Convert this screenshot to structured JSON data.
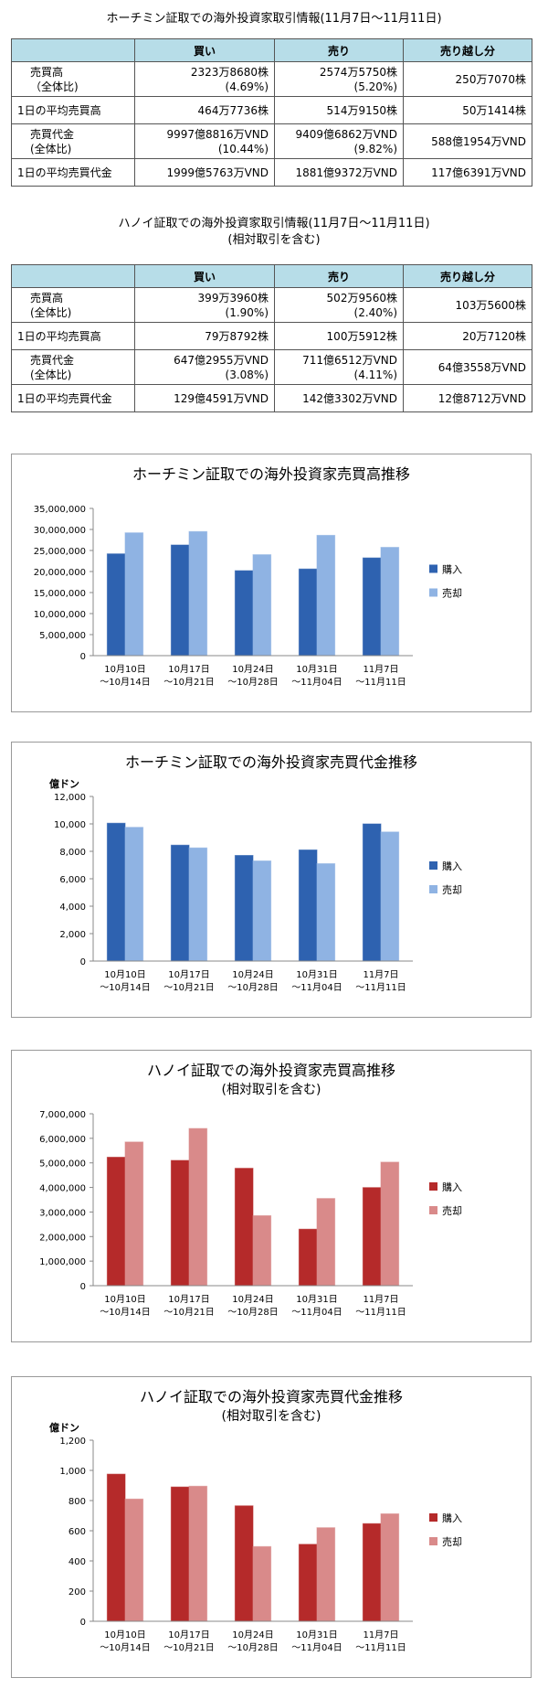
{
  "tables": [
    {
      "title": [
        "ホーチミン証取での海外投資家取引情報(11月7日～11月11日)"
      ],
      "headers": [
        "買い",
        "売り",
        "売り越し分"
      ],
      "rows": [
        {
          "label": [
            "売買高",
            "（全体比)"
          ],
          "cells": [
            [
              "2323万8680株",
              "(4.69%)"
            ],
            [
              "2574万5750株",
              "(5.20%)"
            ],
            [
              "250万7070株"
            ]
          ]
        },
        {
          "label": [
            "1日の平均売買高"
          ],
          "cells": [
            [
              "464万7736株"
            ],
            [
              "514万9150株"
            ],
            [
              "50万1414株"
            ]
          ]
        },
        {
          "label": [
            "売買代金",
            "(全体比)"
          ],
          "cells": [
            [
              "9997億8816万VND",
              "(10.44%)"
            ],
            [
              "9409億6862万VND",
              "(9.82%)"
            ],
            [
              "588億1954万VND"
            ]
          ]
        },
        {
          "label": [
            "1日の平均売買代金"
          ],
          "cells": [
            [
              "1999億5763万VND"
            ],
            [
              "1881億9372万VND"
            ],
            [
              "117億6391万VND"
            ]
          ]
        }
      ]
    },
    {
      "title": [
        "ハノイ証取での海外投資家取引情報(11月7日～11月11日)",
        "(相対取引を含む)"
      ],
      "headers": [
        "買い",
        "売り",
        "売り越し分"
      ],
      "rows": [
        {
          "label": [
            "売買高",
            "(全体比)"
          ],
          "cells": [
            [
              "399万3960株",
              "(1.90%)"
            ],
            [
              "502万9560株",
              "(2.40%)"
            ],
            [
              "103万5600株"
            ]
          ]
        },
        {
          "label": [
            "1日の平均売買高"
          ],
          "cells": [
            [
              "79万8792株"
            ],
            [
              "100万5912株"
            ],
            [
              "20万7120株"
            ]
          ]
        },
        {
          "label": [
            "売買代金",
            "(全体比)"
          ],
          "cells": [
            [
              "647億2955万VND",
              "(3.08%)"
            ],
            [
              "711億6512万VND",
              "(4.11%)"
            ],
            [
              "64億3558万VND"
            ]
          ]
        },
        {
          "label": [
            "1日の平均売買代金"
          ],
          "cells": [
            [
              "129億4591万VND"
            ],
            [
              "142億3302万VND"
            ],
            [
              "12億8712万VND"
            ]
          ]
        }
      ]
    }
  ],
  "chart_data": [
    {
      "type": "bar",
      "title": "ホーチミン証取での海外投資家売買高推移",
      "categories": [
        [
          "10月10日",
          "～10月14日"
        ],
        [
          "10月17日",
          "～10月21日"
        ],
        [
          "10月24日",
          "～10月28日"
        ],
        [
          "10月31日",
          "～11月04日"
        ],
        [
          "11月7日",
          "～11月11日"
        ]
      ],
      "series": [
        {
          "name": "購入",
          "color": "#2e62b0",
          "values": [
            24200000,
            26300000,
            20200000,
            20600000,
            23238680
          ]
        },
        {
          "name": "売却",
          "color": "#8fb3e3",
          "values": [
            29200000,
            29500000,
            24000000,
            28600000,
            25745750
          ]
        }
      ],
      "ylim": [
        0,
        35000000
      ],
      "yticks": [
        0,
        {
          "value": 5000000,
          "label": "5,000,000"
        },
        {
          "value": 10000000,
          "label": "10,000,000"
        },
        {
          "value": 15000000,
          "label": "15,000,000"
        },
        {
          "value": 20000000,
          "label": "20,000,000"
        },
        {
          "value": 25000000,
          "label": "25,000,000"
        },
        {
          "value": 30000000,
          "label": "30,000,000"
        },
        {
          "value": 35000000,
          "label": "35,000,000"
        }
      ],
      "legend": "right"
    },
    {
      "type": "bar",
      "title": "ホーチミン証取での海外投資家売買代金推移",
      "y_label": "億ドン",
      "categories": [
        [
          "10月10日",
          "～10月14日"
        ],
        [
          "10月17日",
          "～10月21日"
        ],
        [
          "10月24日",
          "～10月28日"
        ],
        [
          "10月31日",
          "～11月04日"
        ],
        [
          "11月7日",
          "～11月11日"
        ]
      ],
      "series": [
        {
          "name": "購入",
          "color": "#2e62b0",
          "values": [
            10050,
            8450,
            7700,
            8100,
            9998
          ]
        },
        {
          "name": "売却",
          "color": "#8fb3e3",
          "values": [
            9750,
            8250,
            7300,
            7100,
            9410
          ]
        }
      ],
      "ylim": [
        0,
        12000
      ],
      "yticks": [
        0,
        {
          "value": 2000,
          "label": "2,000"
        },
        {
          "value": 4000,
          "label": "4,000"
        },
        {
          "value": 6000,
          "label": "6,000"
        },
        {
          "value": 8000,
          "label": "8,000"
        },
        {
          "value": 10000,
          "label": "10,000"
        },
        {
          "value": 12000,
          "label": "12,000"
        }
      ],
      "legend": "right"
    },
    {
      "type": "bar",
      "title": "ハノイ証取での海外投資家売買高推移",
      "subtitle": "(相対取引を含む)",
      "categories": [
        [
          "10月10日",
          "～10月14日"
        ],
        [
          "10月17日",
          "～10月21日"
        ],
        [
          "10月24日",
          "～10月28日"
        ],
        [
          "10月31日",
          "～11月04日"
        ],
        [
          "11月7日",
          "～11月11日"
        ]
      ],
      "series": [
        {
          "name": "購入",
          "color": "#b52a2a",
          "values": [
            5230000,
            5100000,
            4780000,
            2300000,
            3993960
          ]
        },
        {
          "name": "売却",
          "color": "#d98a8a",
          "values": [
            5850000,
            6400000,
            2850000,
            3550000,
            5029560
          ]
        }
      ],
      "ylim": [
        0,
        7000000
      ],
      "yticks": [
        0,
        {
          "value": 1000000,
          "label": "1,000,000"
        },
        {
          "value": 2000000,
          "label": "2,000,000"
        },
        {
          "value": 3000000,
          "label": "3,000,000"
        },
        {
          "value": 4000000,
          "label": "4,000,000"
        },
        {
          "value": 5000000,
          "label": "5,000,000"
        },
        {
          "value": 6000000,
          "label": "6,000,000"
        },
        {
          "value": 7000000,
          "label": "7,000,000"
        }
      ],
      "legend": "right"
    },
    {
      "type": "bar",
      "title": "ハノイ証取での海外投資家売買代金推移",
      "subtitle": "(相対取引を含む)",
      "y_label": "億ドン",
      "categories": [
        [
          "10月10日",
          "～10月14日"
        ],
        [
          "10月17日",
          "～10月21日"
        ],
        [
          "10月24日",
          "～10月28日"
        ],
        [
          "10月31日",
          "～11月04日"
        ],
        [
          "11月7日",
          "～11月11日"
        ]
      ],
      "series": [
        {
          "name": "購入",
          "color": "#b52a2a",
          "values": [
            975,
            890,
            765,
            510,
            647
          ]
        },
        {
          "name": "売却",
          "color": "#d98a8a",
          "values": [
            810,
            895,
            495,
            620,
            712
          ]
        }
      ],
      "ylim": [
        0,
        1200
      ],
      "yticks": [
        0,
        200,
        400,
        600,
        800,
        {
          "value": 1000,
          "label": "1,000"
        },
        {
          "value": 1200,
          "label": "1,200"
        }
      ],
      "legend": "right"
    }
  ]
}
